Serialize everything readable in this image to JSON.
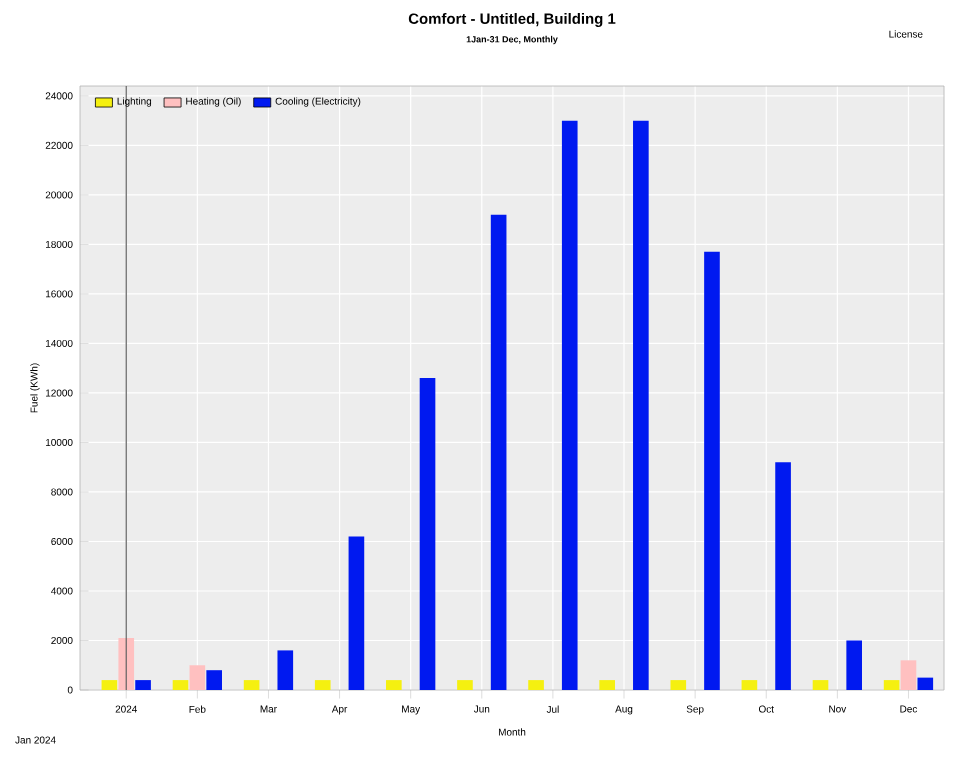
{
  "chart_data": {
    "type": "bar",
    "title": "Comfort - Untitled, Building 1",
    "subtitle": "1Jan-31 Dec, Monthly",
    "xlabel": "Month",
    "ylabel": "Fuel (KWh)",
    "annotations": [
      "License",
      "Jan 2024"
    ],
    "categories": [
      "2024",
      "Feb",
      "Mar",
      "Apr",
      "May",
      "Jun",
      "Jul",
      "Aug",
      "Sep",
      "Oct",
      "Nov",
      "Dec"
    ],
    "series": [
      {
        "name": "Lighting",
        "color": "#f5f010",
        "values": [
          400,
          400,
          400,
          400,
          400,
          400,
          400,
          400,
          400,
          400,
          400,
          400
        ]
      },
      {
        "name": "Heating (Oil)",
        "color": "#ffc0c0",
        "values": [
          2100,
          1000,
          null,
          0,
          0,
          0,
          0,
          0,
          0,
          0,
          0,
          1200
        ]
      },
      {
        "name": "Cooling (Electricity)",
        "color": "#0019f0",
        "values": [
          400,
          800,
          1600,
          6200,
          12600,
          19200,
          23000,
          23000,
          17700,
          9200,
          2000,
          500
        ]
      }
    ],
    "ylim": [
      0,
      24400
    ],
    "yticks": [
      0,
      2000,
      4000,
      6000,
      8000,
      10000,
      12000,
      14000,
      16000,
      18000,
      20000,
      22000,
      24000
    ],
    "ref_lines": [
      {
        "axis": "x",
        "value": "2024",
        "color": "#606060"
      }
    ],
    "grid": true,
    "legend": "top left"
  }
}
